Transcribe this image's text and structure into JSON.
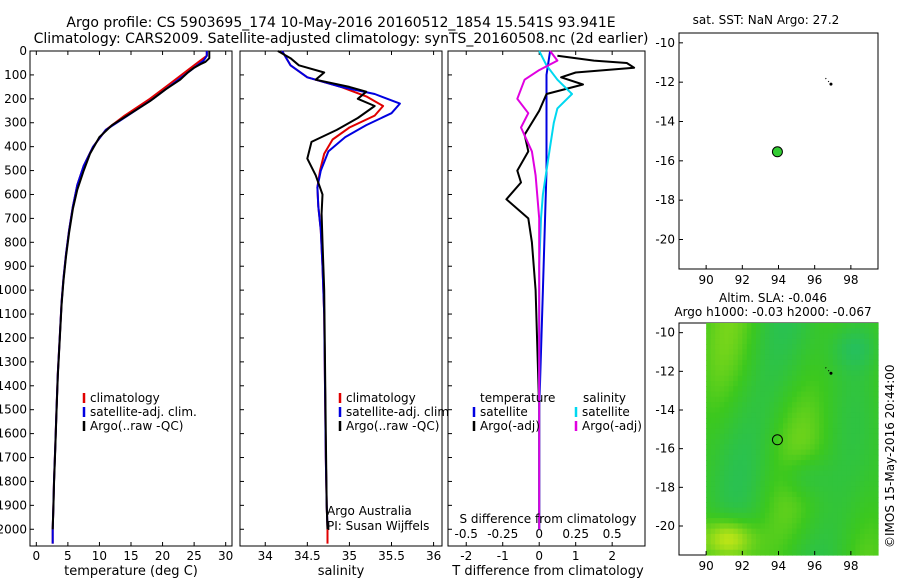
{
  "header": {
    "line1": "Argo profile: CS 5903695_174 10-May-2016 20160512_1854 15.541S 93.941E",
    "line2": "Climatology: CARS2009. Satellite-adjusted climatology: synTS_20160508.nc (2d earlier)"
  },
  "credit": "©IMOS 15-May-2016 20:44:00",
  "colors": {
    "climatology": "#e00000",
    "satellite": "#0000e0",
    "argo": "#000000",
    "sat_diff": "#00d8f0",
    "argo_diff": "#e000e0",
    "marker": "#33cc33"
  },
  "chart_data": [
    {
      "type": "line",
      "id": "temperature",
      "xlabel": "temperature (deg C)",
      "xlim": [
        -1,
        31
      ],
      "xticks": [
        0,
        5,
        10,
        15,
        20,
        25,
        30
      ],
      "ylim": [
        2070,
        0
      ],
      "yticks": [
        0,
        100,
        200,
        300,
        400,
        500,
        600,
        700,
        800,
        900,
        1000,
        1100,
        1200,
        1300,
        1400,
        1500,
        1600,
        1700,
        1800,
        1900,
        2000
      ],
      "legend": [
        "climatology",
        "satellite-adj. clim.",
        "Argo(..raw -QC)"
      ],
      "series": [
        {
          "name": "climatology",
          "color": "#e00000",
          "points": [
            [
              27,
              0
            ],
            [
              27,
              20
            ],
            [
              26,
              40
            ],
            [
              25,
              60
            ],
            [
              23,
              100
            ],
            [
              21,
              140
            ],
            [
              18,
              200
            ],
            [
              14,
              270
            ],
            [
              11,
              330
            ],
            [
              9,
              400
            ],
            [
              7.5,
              480
            ],
            [
              6.5,
              560
            ],
            [
              5.8,
              650
            ],
            [
              5.2,
              750
            ],
            [
              4.7,
              850
            ],
            [
              4.3,
              950
            ],
            [
              4,
              1050
            ],
            [
              3.7,
              1200
            ],
            [
              3.4,
              1350
            ],
            [
              3.2,
              1500
            ],
            [
              3,
              1650
            ],
            [
              2.8,
              1800
            ],
            [
              2.7,
              1900
            ],
            [
              2.6,
              2000
            ],
            [
              2.6,
              2060
            ]
          ]
        },
        {
          "name": "satellite-adj. clim.",
          "color": "#0000e0",
          "points": [
            [
              27,
              0
            ],
            [
              27,
              20
            ],
            [
              26.5,
              40
            ],
            [
              25.5,
              60
            ],
            [
              23.5,
              100
            ],
            [
              21.5,
              140
            ],
            [
              18.5,
              200
            ],
            [
              14.5,
              270
            ],
            [
              11,
              330
            ],
            [
              9,
              400
            ],
            [
              7.5,
              480
            ],
            [
              6.5,
              560
            ],
            [
              5.8,
              650
            ],
            [
              5.2,
              750
            ],
            [
              4.7,
              850
            ],
            [
              4.3,
              950
            ],
            [
              4,
              1050
            ],
            [
              3.7,
              1200
            ],
            [
              3.4,
              1350
            ],
            [
              3.2,
              1500
            ],
            [
              3,
              1650
            ],
            [
              2.8,
              1800
            ],
            [
              2.7,
              1900
            ],
            [
              2.6,
              2000
            ],
            [
              2.6,
              2060
            ]
          ]
        },
        {
          "name": "Argo(..raw -QC)",
          "color": "#000000",
          "points": [
            [
              27.4,
              0
            ],
            [
              27.4,
              30
            ],
            [
              26.8,
              45
            ],
            [
              26,
              55
            ],
            [
              25,
              70
            ],
            [
              24,
              90
            ],
            [
              22.8,
              120
            ],
            [
              20.5,
              160
            ],
            [
              18,
              210
            ],
            [
              15,
              260
            ],
            [
              12,
              310
            ],
            [
              10,
              360
            ],
            [
              8.5,
              430
            ],
            [
              7.5,
              500
            ],
            [
              6.5,
              580
            ],
            [
              5.8,
              660
            ],
            [
              5.2,
              760
            ],
            [
              4.7,
              860
            ],
            [
              4.3,
              960
            ],
            [
              4,
              1060
            ],
            [
              3.7,
              1210
            ],
            [
              3.4,
              1360
            ],
            [
              3.2,
              1510
            ],
            [
              3,
              1660
            ],
            [
              2.8,
              1810
            ],
            [
              2.7,
              1910
            ],
            [
              2.6,
              2000
            ]
          ]
        }
      ]
    },
    {
      "type": "line",
      "id": "salinity",
      "xlabel": "salinity",
      "xlim": [
        33.7,
        36.1
      ],
      "xticks": [
        34,
        34.5,
        35,
        35.5,
        36
      ],
      "xtick_labels": [
        "34",
        "34.5",
        "35",
        "35.5",
        "36"
      ],
      "ylim": [
        2070,
        0
      ],
      "legend": [
        "climatology",
        "satellite-adj. clim.",
        "Argo(..raw -QC)"
      ],
      "annotations": [
        "Argo Australia",
        "PI: Susan Wijffels"
      ],
      "series": [
        {
          "name": "climatology",
          "color": "#e00000",
          "points": [
            [
              34.2,
              0
            ],
            [
              34.3,
              60
            ],
            [
              34.5,
              110
            ],
            [
              34.9,
              150
            ],
            [
              35.2,
              190
            ],
            [
              35.4,
              230
            ],
            [
              35.3,
              270
            ],
            [
              35.0,
              320
            ],
            [
              34.8,
              370
            ],
            [
              34.7,
              430
            ],
            [
              34.65,
              500
            ],
            [
              34.62,
              570
            ],
            [
              34.63,
              650
            ],
            [
              34.66,
              750
            ],
            [
              34.68,
              900
            ],
            [
              34.7,
              1100
            ],
            [
              34.71,
              1400
            ],
            [
              34.72,
              1700
            ],
            [
              34.73,
              1900
            ],
            [
              34.74,
              2000
            ],
            [
              34.74,
              2060
            ]
          ]
        },
        {
          "name": "satellite-adj. clim.",
          "color": "#0000e0",
          "points": [
            [
              34.2,
              0
            ],
            [
              34.3,
              60
            ],
            [
              34.5,
              110
            ],
            [
              34.9,
              150
            ],
            [
              35.3,
              180
            ],
            [
              35.6,
              220
            ],
            [
              35.5,
              260
            ],
            [
              35.2,
              310
            ],
            [
              34.95,
              360
            ],
            [
              34.75,
              420
            ],
            [
              34.66,
              500
            ],
            [
              34.62,
              570
            ],
            [
              34.63,
              650
            ],
            [
              34.66,
              750
            ],
            [
              34.68,
              900
            ],
            [
              34.7,
              1100
            ],
            [
              34.71,
              1400
            ],
            [
              34.72,
              1700
            ],
            [
              34.73,
              1900
            ],
            [
              34.74,
              1990
            ]
          ]
        },
        {
          "name": "Argo(..raw -QC)",
          "color": "#000000",
          "points": [
            [
              34.15,
              0
            ],
            [
              34.3,
              30
            ],
            [
              34.4,
              60
            ],
            [
              34.7,
              90
            ],
            [
              34.6,
              120
            ],
            [
              35.0,
              150
            ],
            [
              35.2,
              170
            ],
            [
              35.1,
              200
            ],
            [
              35.3,
              230
            ],
            [
              35.1,
              280
            ],
            [
              34.85,
              330
            ],
            [
              34.55,
              380
            ],
            [
              34.5,
              450
            ],
            [
              34.6,
              520
            ],
            [
              34.68,
              600
            ],
            [
              34.67,
              680
            ],
            [
              34.68,
              800
            ],
            [
              34.7,
              1000
            ],
            [
              34.71,
              1300
            ],
            [
              34.72,
              1600
            ],
            [
              34.73,
              1900
            ],
            [
              34.74,
              2000
            ]
          ]
        }
      ]
    },
    {
      "type": "line",
      "id": "difference",
      "xlabel": "T difference from climatology",
      "top_xlabel": "S difference from climatology",
      "xlim": [
        -2.5,
        2.9
      ],
      "xticks": [
        -2,
        -1,
        0,
        1,
        2
      ],
      "top_xticks": [
        -0.5,
        -0.25,
        0,
        0.25,
        0.5
      ],
      "ylim": [
        2070,
        0
      ],
      "legend_titles": [
        "temperature",
        "salinity"
      ],
      "legend": [
        "satellite",
        "Argo(-adj)",
        "satellite",
        "Argo(-adj)"
      ],
      "series": [
        {
          "name": "temperature satellite",
          "color": "#0000e0",
          "points": [
            [
              0.3,
              0
            ],
            [
              0.2,
              100
            ],
            [
              0.2,
              500
            ],
            [
              0.1,
              1000
            ],
            [
              0,
              1500
            ],
            [
              0,
              2000
            ]
          ]
        },
        {
          "name": "temperature Argo(-adj)",
          "color": "#000000",
          "points": [
            [
              0.5,
              20
            ],
            [
              1.5,
              40
            ],
            [
              2.4,
              50
            ],
            [
              2.6,
              70
            ],
            [
              1,
              90
            ],
            [
              0.6,
              110
            ],
            [
              1.2,
              140
            ],
            [
              0.2,
              180
            ],
            [
              0,
              250
            ],
            [
              -0.4,
              350
            ],
            [
              -0.3,
              420
            ],
            [
              -0.6,
              500
            ],
            [
              -0.5,
              550
            ],
            [
              -0.9,
              620
            ],
            [
              -0.3,
              700
            ],
            [
              -0.2,
              800
            ],
            [
              -0.1,
              1000
            ],
            [
              0,
              1500
            ],
            [
              0,
              2000
            ]
          ]
        },
        {
          "name": "salinity satellite",
          "color": "#00d8f0",
          "points": [
            [
              0,
              0
            ],
            [
              0.2,
              60
            ],
            [
              0.5,
              120
            ],
            [
              0.9,
              180
            ],
            [
              0.5,
              240
            ],
            [
              0.4,
              300
            ],
            [
              0.3,
              400
            ],
            [
              0.2,
              500
            ],
            [
              0.1,
              600
            ],
            [
              0.05,
              700
            ],
            [
              0,
              900
            ],
            [
              0,
              2000
            ]
          ]
        },
        {
          "name": "salinity Argo(-adj)",
          "color": "#e000e0",
          "points": [
            [
              0.3,
              0
            ],
            [
              0.5,
              40
            ],
            [
              0,
              80
            ],
            [
              -0.4,
              120
            ],
            [
              -0.6,
              200
            ],
            [
              -0.3,
              260
            ],
            [
              -0.5,
              320
            ],
            [
              -0.2,
              420
            ],
            [
              -0.1,
              520
            ],
            [
              0,
              700
            ],
            [
              0,
              2000
            ]
          ]
        }
      ]
    },
    {
      "type": "scatter",
      "id": "sst-map",
      "title": "sat. SST: NaN Argo: 27.2",
      "xlim": [
        88.5,
        99.5
      ],
      "ylim": [
        -21.5,
        -9.5
      ],
      "xticks": [
        90,
        92,
        94,
        96,
        98
      ],
      "yticks": [
        -10,
        -12,
        -14,
        -16,
        -18,
        -20
      ],
      "points": [
        {
          "lon": 93.94,
          "lat": -15.54
        }
      ],
      "track": [
        [
          96.6,
          -11.8
        ],
        [
          96.8,
          -12.0
        ],
        [
          96.9,
          -12.1
        ]
      ]
    },
    {
      "type": "heatmap",
      "id": "sla-map",
      "title_lines": [
        "Altim. SLA: -0.046",
        "Argo h1000: -0.03 h2000: -0.067"
      ],
      "xlim": [
        88.5,
        99.5
      ],
      "ylim": [
        -21.5,
        -9.5
      ],
      "xticks": [
        90,
        92,
        94,
        96,
        98
      ],
      "yticks": [
        -10,
        -12,
        -14,
        -16,
        -18,
        -20
      ],
      "points": [
        {
          "lon": 93.94,
          "lat": -15.54
        }
      ],
      "track": [
        [
          96.6,
          -11.8
        ],
        [
          96.8,
          -12.0
        ],
        [
          96.9,
          -12.1
        ]
      ]
    }
  ]
}
